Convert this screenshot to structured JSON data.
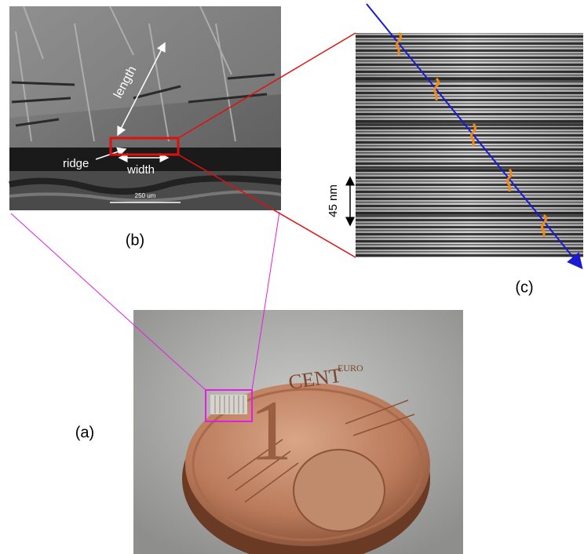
{
  "labels": {
    "a": "(a)",
    "b": "(b)",
    "c": "(c)"
  },
  "sem": {
    "length": "length",
    "ridge": "ridge",
    "width": "width",
    "scale_bar": "250 um"
  },
  "tem": {
    "scale": "45 nm"
  },
  "coin": {
    "euro": "EURO",
    "cent": "CENT",
    "denomination": "1"
  }
}
